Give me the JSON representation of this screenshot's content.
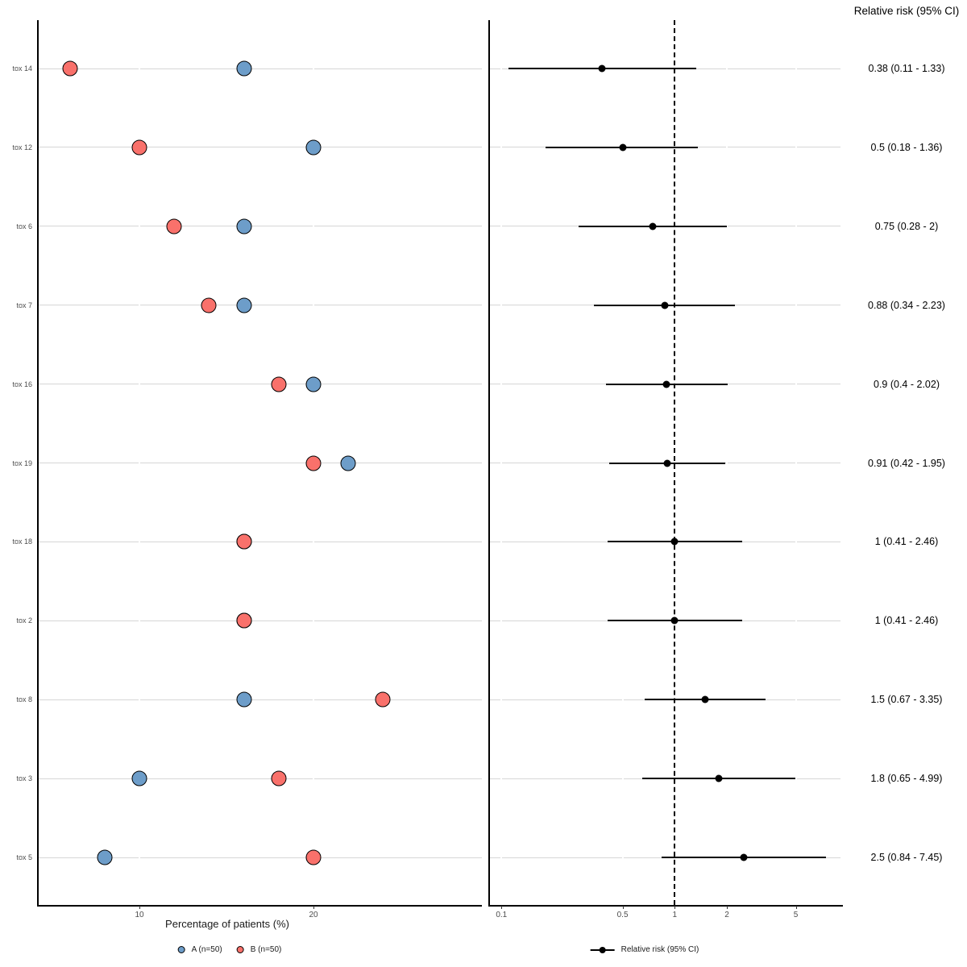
{
  "header": {
    "title": "Relative risk (95% CI)"
  },
  "colors": {
    "series_a": "#6d9dc9",
    "series_b": "#f9716b",
    "rowline": "#d6d6d6",
    "text_muted": "#4d4d4d",
    "ci": "#000000"
  },
  "left_panel": {
    "xlabel": "Percentage of patients (%)",
    "tick_labels": [
      "10",
      "20"
    ],
    "legend": [
      {
        "label": "A (n=50)",
        "color": "#6d9dc9"
      },
      {
        "label": "B (n=50)",
        "color": "#f9716b"
      }
    ]
  },
  "right_panel": {
    "tick_labels": [
      "0.1",
      "0.5",
      "1",
      "2",
      "5"
    ],
    "legend_label": "Relative risk (95% CI)"
  },
  "chart_data": [
    {
      "type": "scatter",
      "title": "",
      "xlabel": "Percentage of patients (%)",
      "ylabel": "",
      "xticks": [
        10,
        20
      ],
      "xlim": [
        4.1,
        29.7
      ],
      "grid": "horizontal-rows",
      "legend_position": "bottom",
      "categories": [
        "tox 14",
        "tox 12",
        "tox 6",
        "tox 7",
        "tox 16",
        "tox 19",
        "tox 18",
        "tox 2",
        "tox 8",
        "tox 3",
        "tox 5"
      ],
      "series": [
        {
          "name": "A (n=50)",
          "color": "#6d9dc9",
          "values": [
            16,
            20,
            16,
            16,
            20,
            22,
            16,
            16,
            16,
            10,
            8
          ]
        },
        {
          "name": "B (n=50)",
          "color": "#f9716b",
          "values": [
            6,
            10,
            12,
            14,
            18,
            20,
            16,
            16,
            24,
            18,
            20
          ]
        }
      ]
    },
    {
      "type": "forest",
      "title": "Relative risk (95% CI)",
      "xscale": "log10",
      "xticks": [
        0.1,
        0.5,
        1,
        2,
        5
      ],
      "xtick_labels": [
        "0.1",
        "0.5",
        "1",
        "2",
        "5"
      ],
      "xlim": [
        0.084,
        9.0
      ],
      "reference_line": 1,
      "legend_label": "Relative risk (95% CI)",
      "legend_position": "bottom",
      "categories": [
        "tox 14",
        "tox 12",
        "tox 6",
        "tox 7",
        "tox 16",
        "tox 19",
        "tox 18",
        "tox 2",
        "tox 8",
        "tox 3",
        "tox 5"
      ],
      "rr": [
        0.38,
        0.5,
        0.75,
        0.88,
        0.9,
        0.91,
        1,
        1,
        1.5,
        1.8,
        2.5
      ],
      "ci_low": [
        0.11,
        0.18,
        0.28,
        0.34,
        0.4,
        0.42,
        0.41,
        0.41,
        0.67,
        0.65,
        0.84
      ],
      "ci_high": [
        1.33,
        1.36,
        2,
        2.23,
        2.02,
        1.95,
        2.46,
        2.46,
        3.35,
        4.99,
        7.45
      ],
      "labels": [
        "0.38 (0.11 - 1.33)",
        "0.5 (0.18 - 1.36)",
        "0.75 (0.28 - 2)",
        "0.88 (0.34 - 2.23)",
        "0.9 (0.4 - 2.02)",
        "0.91 (0.42 - 1.95)",
        "1 (0.41 - 2.46)",
        "1 (0.41 - 2.46)",
        "1.5 (0.67 - 3.35)",
        "1.8 (0.65 - 4.99)",
        "2.5 (0.84 - 7.45)"
      ]
    }
  ]
}
